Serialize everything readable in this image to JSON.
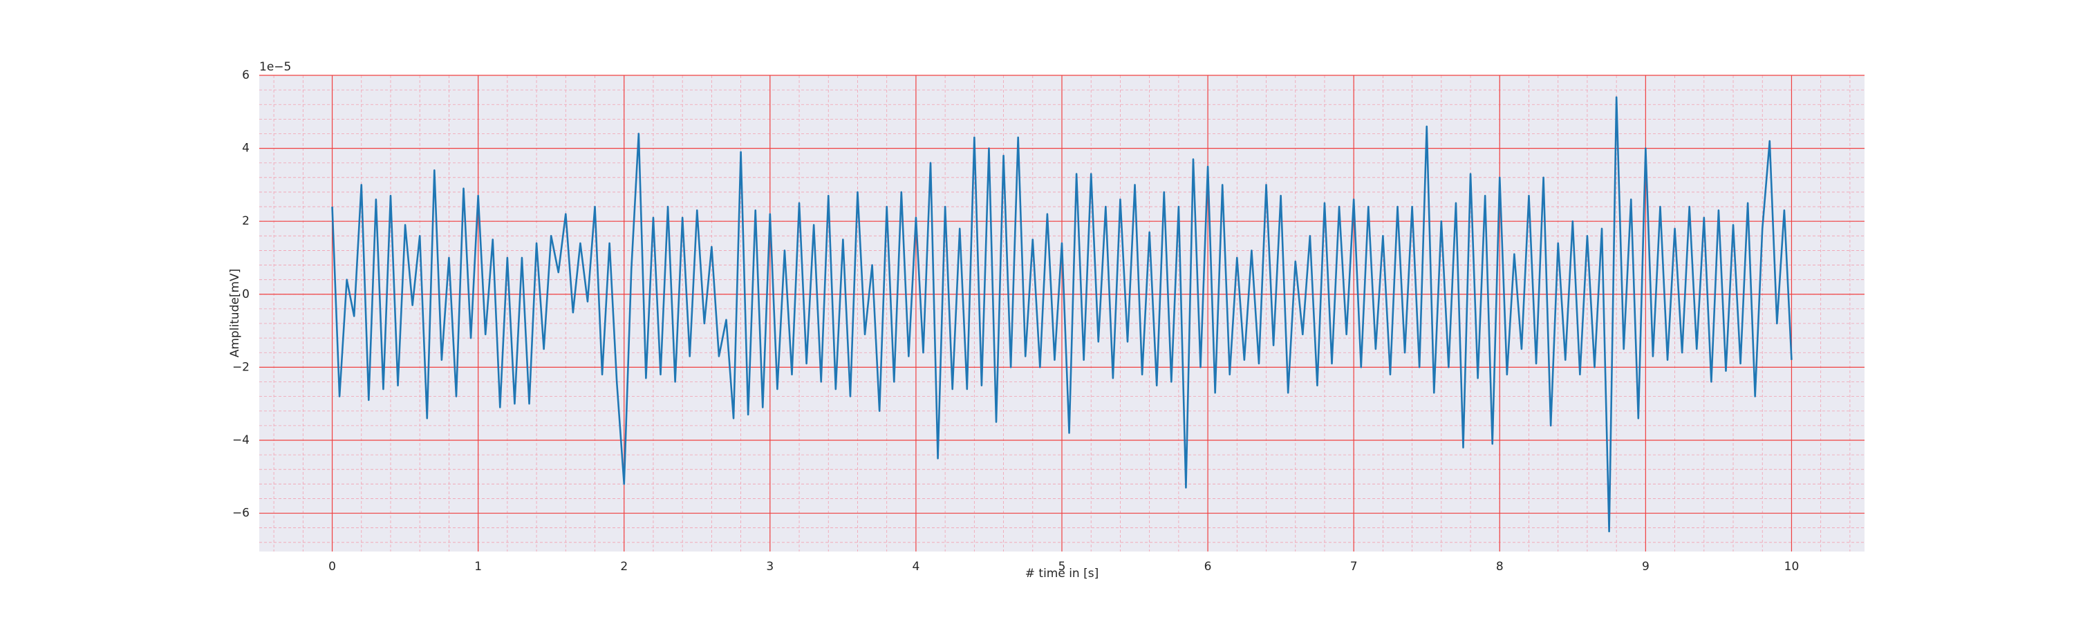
{
  "chart_data": {
    "type": "line",
    "x_label": "# time in [s]",
    "y_label": "Amplitude[mV]",
    "offset_label": "1e−5",
    "color": "#1f77b4",
    "grid": true,
    "minor_grid": true,
    "xlim": [
      -0.5,
      10.5
    ],
    "ylim": [
      -7.05,
      6
    ],
    "xticks": [
      0,
      1,
      2,
      3,
      4,
      5,
      6,
      7,
      8,
      9,
      10
    ],
    "yticks": [
      {
        "value": -6,
        "label": "−6"
      },
      {
        "value": -4,
        "label": "−4"
      },
      {
        "value": -2,
        "label": "−2"
      },
      0,
      2,
      4,
      6
    ],
    "x": [
      0,
      0.05,
      0.1,
      0.15,
      0.2,
      0.25,
      0.3,
      0.35,
      0.4,
      0.45,
      0.5,
      0.55,
      0.6,
      0.65,
      0.7,
      0.75,
      0.8,
      0.85,
      0.9,
      0.95,
      1,
      1.05,
      1.1,
      1.15,
      1.2,
      1.25,
      1.3,
      1.35,
      1.4,
      1.45,
      1.5,
      1.55,
      1.6,
      1.65,
      1.7,
      1.75,
      1.8,
      1.85,
      1.9,
      1.95,
      2,
      2.05,
      2.1,
      2.15,
      2.2,
      2.25,
      2.3,
      2.35,
      2.4,
      2.45,
      2.5,
      2.55,
      2.6,
      2.65,
      2.7,
      2.75,
      2.8,
      2.85,
      2.9,
      2.95,
      3,
      3.05,
      3.1,
      3.15,
      3.2,
      3.25,
      3.3,
      3.35,
      3.4,
      3.45,
      3.5,
      3.55,
      3.6,
      3.65,
      3.7,
      3.75,
      3.8,
      3.85,
      3.9,
      3.95,
      4,
      4.05,
      4.1,
      4.15,
      4.2,
      4.25,
      4.3,
      4.35,
      4.4,
      4.45,
      4.5,
      4.55,
      4.6,
      4.65,
      4.7,
      4.75,
      4.8,
      4.85,
      4.9,
      4.95,
      5,
      5.05,
      5.1,
      5.15,
      5.2,
      5.25,
      5.3,
      5.35,
      5.4,
      5.45,
      5.5,
      5.55,
      5.6,
      5.65,
      5.7,
      5.75,
      5.8,
      5.85,
      5.9,
      5.95,
      6,
      6.05,
      6.1,
      6.15,
      6.2,
      6.25,
      6.3,
      6.35,
      6.4,
      6.45,
      6.5,
      6.55,
      6.6,
      6.65,
      6.7,
      6.75,
      6.8,
      6.85,
      6.9,
      6.95,
      7,
      7.05,
      7.1,
      7.15,
      7.2,
      7.25,
      7.3,
      7.35,
      7.4,
      7.45,
      7.5,
      7.55,
      7.6,
      7.65,
      7.7,
      7.75,
      7.8,
      7.85,
      7.9,
      7.95,
      8,
      8.05,
      8.1,
      8.15,
      8.2,
      8.25,
      8.3,
      8.35,
      8.4,
      8.45,
      8.5,
      8.55,
      8.6,
      8.65,
      8.7,
      8.75,
      8.8,
      8.85,
      8.9,
      8.95,
      9,
      9.05,
      9.1,
      9.15,
      9.2,
      9.25,
      9.3,
      9.35,
      9.4,
      9.45,
      9.5,
      9.55,
      9.6,
      9.65,
      9.7,
      9.75,
      9.8,
      9.85,
      9.9,
      9.95,
      10
    ],
    "values": [
      2.4,
      -2.8,
      0.4,
      -0.6,
      3.0,
      -2.9,
      2.6,
      -2.6,
      2.7,
      -2.5,
      1.9,
      -0.3,
      1.6,
      -3.4,
      3.4,
      -1.8,
      1.0,
      -2.8,
      2.9,
      -1.2,
      2.7,
      -1.1,
      1.5,
      -3.1,
      1.0,
      -3.0,
      1.0,
      -3.0,
      1.4,
      -1.5,
      1.6,
      0.6,
      2.2,
      -0.5,
      1.4,
      -0.2,
      2.4,
      -2.2,
      1.4,
      -2.4,
      -5.2,
      0.7,
      4.4,
      -2.3,
      2.1,
      -2.2,
      2.4,
      -2.4,
      2.1,
      -1.7,
      2.3,
      -0.8,
      1.3,
      -1.7,
      -0.7,
      -3.4,
      3.9,
      -3.3,
      2.3,
      -3.1,
      2.2,
      -2.6,
      1.2,
      -2.2,
      2.5,
      -1.9,
      1.9,
      -2.4,
      2.7,
      -2.6,
      1.5,
      -2.8,
      2.8,
      -1.1,
      0.8,
      -3.2,
      2.4,
      -2.4,
      2.8,
      -1.7,
      2.1,
      -1.6,
      3.6,
      -4.5,
      2.4,
      -2.6,
      1.8,
      -2.6,
      4.3,
      -2.5,
      4.0,
      -3.5,
      3.8,
      -2.0,
      4.3,
      -1.7,
      1.5,
      -2.0,
      2.2,
      -1.8,
      1.4,
      -3.8,
      3.3,
      -1.8,
      3.3,
      -1.3,
      2.4,
      -2.3,
      2.6,
      -1.3,
      3.0,
      -2.2,
      1.7,
      -2.5,
      2.8,
      -2.4,
      2.4,
      -5.3,
      3.7,
      -2.0,
      3.5,
      -2.7,
      3.0,
      -2.2,
      1.0,
      -1.8,
      1.2,
      -1.9,
      3.0,
      -1.4,
      2.7,
      -2.7,
      0.9,
      -1.1,
      1.6,
      -2.5,
      2.5,
      -1.9,
      2.4,
      -1.1,
      2.6,
      -2.0,
      2.4,
      -1.5,
      1.6,
      -2.2,
      2.4,
      -1.6,
      2.4,
      -2.0,
      4.6,
      -2.7,
      2.0,
      -2.0,
      2.5,
      -4.2,
      3.3,
      -2.3,
      2.7,
      -4.1,
      3.2,
      -2.2,
      1.1,
      -1.5,
      2.7,
      -1.9,
      3.2,
      -3.6,
      1.4,
      -1.8,
      2.0,
      -2.2,
      1.6,
      -2.0,
      1.8,
      -6.5,
      5.4,
      -1.5,
      2.6,
      -3.4,
      4.0,
      -1.7,
      2.4,
      -1.8,
      1.8,
      -1.6,
      2.4,
      -1.5,
      2.1,
      -2.4,
      2.3,
      -2.1,
      1.9,
      -1.9,
      2.5,
      -2.8,
      1.8,
      4.2,
      -0.8,
      2.3,
      -1.8
    ]
  }
}
